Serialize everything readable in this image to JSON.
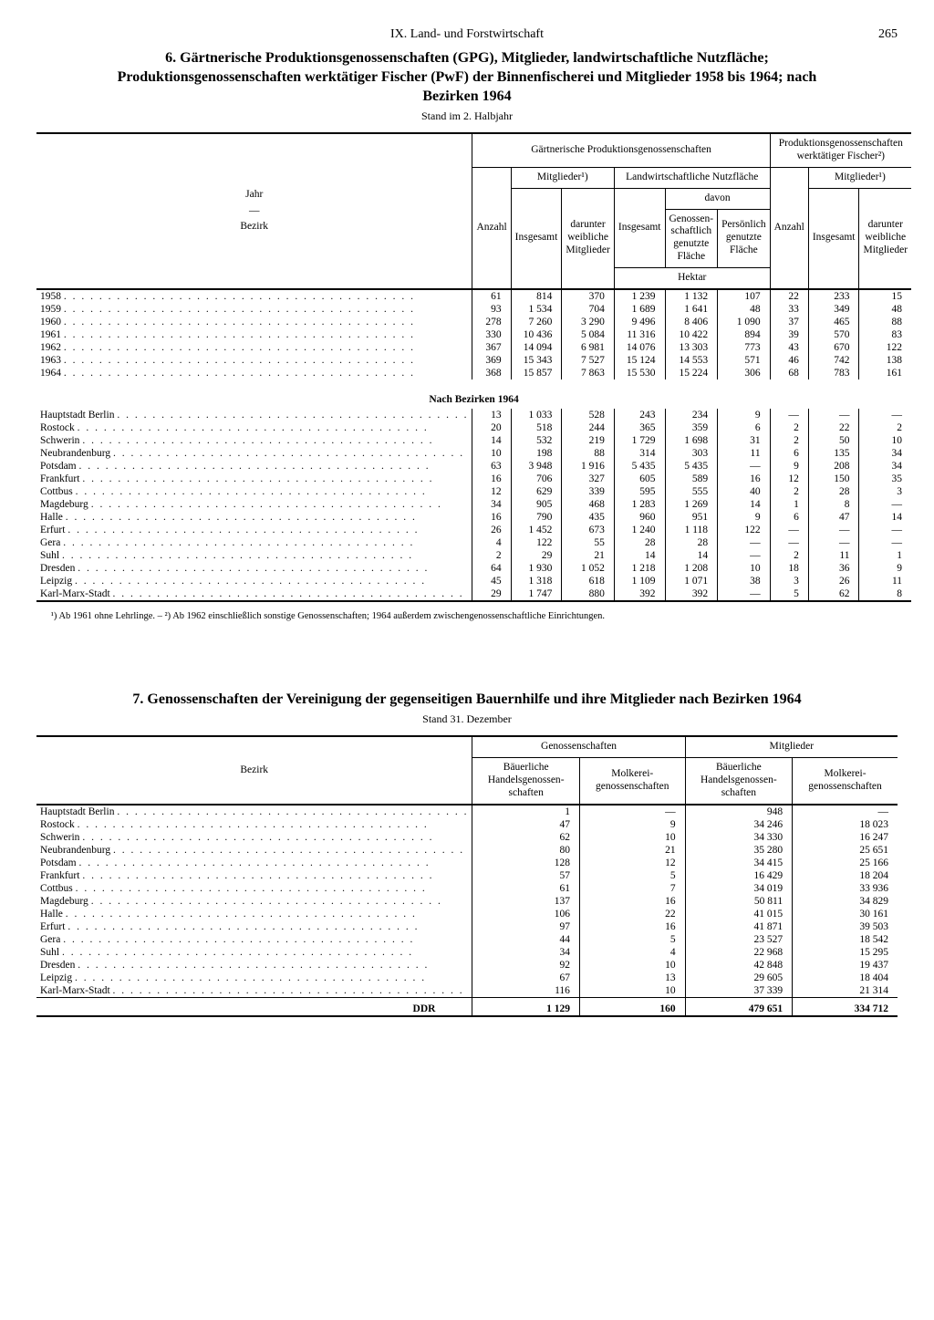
{
  "page": {
    "chapter": "IX. Land- und Forstwirtschaft",
    "number": "265"
  },
  "table6": {
    "title": "6. Gärtnerische Produktionsgenossenschaften (GPG), Mitglieder, landwirtschaftliche Nutzfläche; Produktionsgenossenschaften werktätiger Fischer (PwF) der Binnenfischerei und Mitglieder 1958 bis 1964; nach Bezirken 1964",
    "subtitle": "Stand im 2. Halbjahr",
    "headers": {
      "rowlabel_line1": "Jahr",
      "rowlabel_line2": "Bezirk",
      "gpg_group": "Gärtnerische Produktionsgenossenschaften",
      "pwf_group": "Produktionsgenossenschaften werktätiger Fischer²)",
      "anzahl": "Anzahl",
      "mitglieder": "Mitglieder¹)",
      "insgesamt": "Insgesamt",
      "darunter_weibl": "darunter weibliche Mitglieder",
      "nutzflaeche": "Landwirtschaftliche Nutzfläche",
      "davon": "davon",
      "genoss": "Genossen­schaftlich genutzte Fläche",
      "persoenl": "Persönlich genutzte Fläche",
      "hektar": "Hektar"
    },
    "years": [
      {
        "label": "1958",
        "v": [
          "61",
          "814",
          "370",
          "1 239",
          "1 132",
          "107",
          "22",
          "233",
          "15"
        ]
      },
      {
        "label": "1959",
        "v": [
          "93",
          "1 534",
          "704",
          "1 689",
          "1 641",
          "48",
          "33",
          "349",
          "48"
        ]
      },
      {
        "label": "1960",
        "v": [
          "278",
          "7 260",
          "3 290",
          "9 496",
          "8 406",
          "1 090",
          "37",
          "465",
          "88"
        ]
      },
      {
        "label": "1961",
        "v": [
          "330",
          "10 436",
          "5 084",
          "11 316",
          "10 422",
          "894",
          "39",
          "570",
          "83"
        ]
      },
      {
        "label": "1962",
        "v": [
          "367",
          "14 094",
          "6 981",
          "14 076",
          "13 303",
          "773",
          "43",
          "670",
          "122"
        ]
      },
      {
        "label": "1963",
        "v": [
          "369",
          "15 343",
          "7 527",
          "15 124",
          "14 553",
          "571",
          "46",
          "742",
          "138"
        ]
      },
      {
        "label": "1964",
        "v": [
          "368",
          "15 857",
          "7 863",
          "15 530",
          "15 224",
          "306",
          "68",
          "783",
          "161"
        ]
      }
    ],
    "subhead": "Nach Bezirken 1964",
    "bezirke": [
      {
        "label": "Hauptstadt Berlin",
        "v": [
          "13",
          "1 033",
          "528",
          "243",
          "234",
          "9",
          "—",
          "—",
          "—"
        ]
      },
      {
        "label": "Rostock",
        "v": [
          "20",
          "518",
          "244",
          "365",
          "359",
          "6",
          "2",
          "22",
          "2"
        ]
      },
      {
        "label": "Schwerin",
        "v": [
          "14",
          "532",
          "219",
          "1 729",
          "1 698",
          "31",
          "2",
          "50",
          "10"
        ]
      },
      {
        "label": "Neubrandenburg",
        "v": [
          "10",
          "198",
          "88",
          "314",
          "303",
          "11",
          "6",
          "135",
          "34"
        ]
      },
      {
        "label": "Potsdam",
        "v": [
          "63",
          "3 948",
          "1 916",
          "5 435",
          "5 435",
          "—",
          "9",
          "208",
          "34"
        ]
      },
      {
        "label": "Frankfurt",
        "v": [
          "16",
          "706",
          "327",
          "605",
          "589",
          "16",
          "12",
          "150",
          "35"
        ]
      },
      {
        "label": "Cottbus",
        "v": [
          "12",
          "629",
          "339",
          "595",
          "555",
          "40",
          "2",
          "28",
          "3"
        ]
      },
      {
        "label": "Magdeburg",
        "v": [
          "34",
          "905",
          "468",
          "1 283",
          "1 269",
          "14",
          "1",
          "8",
          "—"
        ]
      },
      {
        "label": "Halle",
        "v": [
          "16",
          "790",
          "435",
          "960",
          "951",
          "9",
          "6",
          "47",
          "14"
        ]
      },
      {
        "label": "Erfurt",
        "v": [
          "26",
          "1 452",
          "673",
          "1 240",
          "1 118",
          "122",
          "—",
          "—",
          "—"
        ]
      },
      {
        "label": "Gera",
        "v": [
          "4",
          "122",
          "55",
          "28",
          "28",
          "—",
          "—",
          "—",
          "—"
        ]
      },
      {
        "label": "Suhl",
        "v": [
          "2",
          "29",
          "21",
          "14",
          "14",
          "—",
          "2",
          "11",
          "1"
        ]
      },
      {
        "label": "Dresden",
        "v": [
          "64",
          "1 930",
          "1 052",
          "1 218",
          "1 208",
          "10",
          "18",
          "36",
          "9"
        ]
      },
      {
        "label": "Leipzig",
        "v": [
          "45",
          "1 318",
          "618",
          "1 109",
          "1 071",
          "38",
          "3",
          "26",
          "11"
        ]
      },
      {
        "label": "Karl-Marx-Stadt",
        "v": [
          "29",
          "1 747",
          "880",
          "392",
          "392",
          "—",
          "5",
          "62",
          "8"
        ]
      }
    ],
    "footnote": "¹) Ab 1961 ohne Lehrlinge. – ²) Ab 1962 einschließlich sonstige Genossenschaften; 1964 außerdem zwischengenossenschaftliche Einrichtungen."
  },
  "table7": {
    "title": "7. Genossenschaften der Vereinigung der gegenseitigen Bauernhilfe und ihre Mitglieder nach Bezirken 1964",
    "subtitle": "Stand 31. Dezember",
    "headers": {
      "bezirk": "Bezirk",
      "genoss": "Genossenschaften",
      "mitglieder": "Mitglieder",
      "bhg": "Bäuerliche Handelsgenossen­schaften",
      "molkerei": "Molkerei­genossenschaften"
    },
    "rows": [
      {
        "label": "Hauptstadt Berlin",
        "v": [
          "1",
          "—",
          "948",
          "—"
        ]
      },
      {
        "label": "Rostock",
        "v": [
          "47",
          "9",
          "34 246",
          "18 023"
        ]
      },
      {
        "label": "Schwerin",
        "v": [
          "62",
          "10",
          "34 330",
          "16 247"
        ]
      },
      {
        "label": "Neubrandenburg",
        "v": [
          "80",
          "21",
          "35 280",
          "25 651"
        ]
      },
      {
        "label": "Potsdam",
        "v": [
          "128",
          "12",
          "34 415",
          "25 166"
        ]
      },
      {
        "label": "Frankfurt",
        "v": [
          "57",
          "5",
          "16 429",
          "18 204"
        ]
      },
      {
        "label": "Cottbus",
        "v": [
          "61",
          "7",
          "34 019",
          "33 936"
        ]
      },
      {
        "label": "Magdeburg",
        "v": [
          "137",
          "16",
          "50 811",
          "34 829"
        ]
      },
      {
        "label": "Halle",
        "v": [
          "106",
          "22",
          "41 015",
          "30 161"
        ]
      },
      {
        "label": "Erfurt",
        "v": [
          "97",
          "16",
          "41 871",
          "39 503"
        ]
      },
      {
        "label": "Gera",
        "v": [
          "44",
          "5",
          "23 527",
          "18 542"
        ]
      },
      {
        "label": "Suhl",
        "v": [
          "34",
          "4",
          "22 968",
          "15 295"
        ]
      },
      {
        "label": "Dresden",
        "v": [
          "92",
          "10",
          "42 848",
          "19 437"
        ]
      },
      {
        "label": "Leipzig",
        "v": [
          "67",
          "13",
          "29 605",
          "18 404"
        ]
      },
      {
        "label": "Karl-Marx-Stadt",
        "v": [
          "116",
          "10",
          "37 339",
          "21 314"
        ]
      }
    ],
    "total": {
      "label": "DDR",
      "v": [
        "1 129",
        "160",
        "479 651",
        "334 712"
      ]
    }
  }
}
